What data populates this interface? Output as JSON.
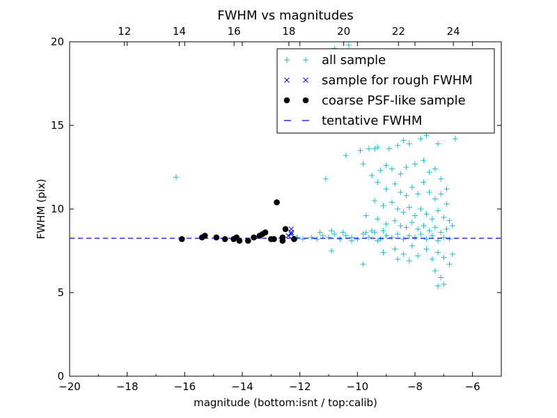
{
  "chart_data": {
    "type": "scatter",
    "title": "FWHM vs magnitudes",
    "xlabel": "magnitude (bottom:isnt / top:calib)",
    "ylabel": "FWHM (pix)",
    "xlim": [
      -20,
      -5
    ],
    "ylim": [
      0,
      20
    ],
    "top_xlim": [
      10,
      25.75
    ],
    "x_ticks": [
      -20,
      -18,
      -16,
      -14,
      -12,
      -10,
      -8,
      -6
    ],
    "x_tick_labels": [
      "−20",
      "−18",
      "−16",
      "−14",
      "−12",
      "−10",
      "−8",
      "−6"
    ],
    "y_ticks": [
      0,
      5,
      10,
      15,
      20
    ],
    "y_tick_labels": [
      "0",
      "5",
      "10",
      "15",
      "20"
    ],
    "top_ticks": [
      12,
      14,
      16,
      18,
      20,
      22,
      24
    ],
    "top_tick_labels": [
      "12",
      "14",
      "16",
      "18",
      "20",
      "22",
      "24"
    ],
    "grid": false,
    "legend_position": "top-right",
    "series": [
      {
        "name": "all sample",
        "marker": "plus",
        "color": "#17becf",
        "points": [
          [
            -16.3,
            11.9
          ],
          [
            -11.1,
            11.8
          ],
          [
            -10.4,
            13.2
          ],
          [
            -10.3,
            19.8
          ],
          [
            -10.8,
            19.6
          ],
          [
            -9.9,
            13.5
          ],
          [
            -9.8,
            12.7
          ],
          [
            -9.8,
            6.7
          ],
          [
            -9.6,
            13.6
          ],
          [
            -9.4,
            13.6
          ],
          [
            -9.3,
            13.7
          ],
          [
            -8.9,
            13.6
          ],
          [
            -8.6,
            13.8
          ],
          [
            -8.4,
            14.1
          ],
          [
            -8.2,
            13.9
          ],
          [
            -7.8,
            14.2
          ],
          [
            -7.6,
            14.4
          ],
          [
            -7.4,
            14.8
          ],
          [
            -7.2,
            13.9
          ],
          [
            -6.6,
            14.2
          ],
          [
            -9.5,
            12.0
          ],
          [
            -9.2,
            12.3
          ],
          [
            -9.0,
            12.6
          ],
          [
            -8.8,
            12.4
          ],
          [
            -8.5,
            12.1
          ],
          [
            -8.3,
            12.5
          ],
          [
            -8.0,
            12.7
          ],
          [
            -7.7,
            12.9
          ],
          [
            -7.5,
            12.2
          ],
          [
            -7.3,
            12.4
          ],
          [
            -7.1,
            11.8
          ],
          [
            -6.9,
            11.2
          ],
          [
            -9.3,
            11.6
          ],
          [
            -9.0,
            11.2
          ],
          [
            -8.7,
            11.5
          ],
          [
            -8.5,
            11.0
          ],
          [
            -8.3,
            10.8
          ],
          [
            -8.1,
            11.3
          ],
          [
            -7.9,
            10.9
          ],
          [
            -7.7,
            11.6
          ],
          [
            -7.5,
            11.0
          ],
          [
            -7.3,
            10.6
          ],
          [
            -7.1,
            10.9
          ],
          [
            -6.9,
            10.3
          ],
          [
            -9.4,
            10.5
          ],
          [
            -9.1,
            10.2
          ],
          [
            -8.8,
            10.4
          ],
          [
            -8.6,
            10.0
          ],
          [
            -8.4,
            9.8
          ],
          [
            -8.2,
            10.1
          ],
          [
            -8.0,
            9.6
          ],
          [
            -7.8,
            10.0
          ],
          [
            -7.6,
            9.7
          ],
          [
            -7.4,
            9.4
          ],
          [
            -7.2,
            9.9
          ],
          [
            -7.0,
            9.5
          ],
          [
            -6.8,
            9.3
          ],
          [
            -9.7,
            9.6
          ],
          [
            -9.3,
            9.4
          ],
          [
            -9.0,
            9.1
          ],
          [
            -8.7,
            9.3
          ],
          [
            -8.5,
            9.0
          ],
          [
            -8.3,
            8.9
          ],
          [
            -8.1,
            9.2
          ],
          [
            -7.9,
            8.8
          ],
          [
            -7.7,
            9.0
          ],
          [
            -7.5,
            8.7
          ],
          [
            -7.3,
            8.9
          ],
          [
            -7.1,
            8.6
          ],
          [
            -6.9,
            8.8
          ],
          [
            -6.7,
            9.0
          ],
          [
            -12.1,
            8.3
          ],
          [
            -11.9,
            8.2
          ],
          [
            -11.6,
            8.3
          ],
          [
            -11.4,
            8.2
          ],
          [
            -11.2,
            8.4
          ],
          [
            -11.0,
            8.3
          ],
          [
            -10.8,
            8.5
          ],
          [
            -10.6,
            8.2
          ],
          [
            -10.4,
            8.4
          ],
          [
            -10.2,
            8.3
          ],
          [
            -10.0,
            8.2
          ],
          [
            -9.8,
            8.5
          ],
          [
            -9.6,
            8.3
          ],
          [
            -9.4,
            8.6
          ],
          [
            -9.2,
            8.2
          ],
          [
            -9.0,
            8.4
          ],
          [
            -8.8,
            8.3
          ],
          [
            -8.6,
            8.5
          ],
          [
            -8.4,
            8.2
          ],
          [
            -8.2,
            8.4
          ],
          [
            -8.0,
            8.3
          ],
          [
            -7.8,
            8.5
          ],
          [
            -7.6,
            8.2
          ],
          [
            -7.4,
            8.4
          ],
          [
            -7.2,
            8.1
          ],
          [
            -7.0,
            8.3
          ],
          [
            -6.8,
            8.2
          ],
          [
            -10.9,
            7.5
          ],
          [
            -9.1,
            7.4
          ],
          [
            -8.7,
            7.6
          ],
          [
            -8.4,
            7.3
          ],
          [
            -8.1,
            7.8
          ],
          [
            -7.9,
            7.2
          ],
          [
            -7.6,
            7.6
          ],
          [
            -7.4,
            7.0
          ],
          [
            -7.2,
            7.4
          ],
          [
            -7.0,
            7.1
          ],
          [
            -6.8,
            6.7
          ],
          [
            -7.3,
            6.3
          ],
          [
            -7.1,
            5.9
          ],
          [
            -7.0,
            5.5
          ],
          [
            -7.2,
            5.4
          ],
          [
            -6.7,
            7.3
          ],
          [
            -8.6,
            7.0
          ],
          [
            -8.2,
            6.9
          ],
          [
            -10.2,
            8.1
          ],
          [
            -9.3,
            8.1
          ],
          [
            -9.7,
            8.6
          ],
          [
            -11.3,
            8.6
          ],
          [
            -10.9,
            8.7
          ],
          [
            -10.5,
            8.6
          ],
          [
            -9.5,
            8.7
          ],
          [
            -9.1,
            8.7
          ]
        ]
      },
      {
        "name": "sample for rough FWHM",
        "marker": "x",
        "color": "#0000ff",
        "points": [
          [
            -12.3,
            8.8
          ],
          [
            -12.3,
            8.5
          ],
          [
            -12.4,
            8.4
          ],
          [
            -12.3,
            8.6
          ]
        ]
      },
      {
        "name": "coarse PSF-like sample",
        "marker": "circle",
        "color": "#000000",
        "points": [
          [
            -16.1,
            8.2
          ],
          [
            -15.4,
            8.3
          ],
          [
            -15.3,
            8.4
          ],
          [
            -14.9,
            8.3
          ],
          [
            -14.6,
            8.2
          ],
          [
            -14.3,
            8.2
          ],
          [
            -14.2,
            8.3
          ],
          [
            -14.1,
            8.1
          ],
          [
            -13.8,
            8.1
          ],
          [
            -13.6,
            8.3
          ],
          [
            -13.4,
            8.4
          ],
          [
            -13.3,
            8.5
          ],
          [
            -13.2,
            8.6
          ],
          [
            -13.0,
            8.2
          ],
          [
            -12.9,
            8.2
          ],
          [
            -12.8,
            10.4
          ],
          [
            -12.6,
            8.1
          ],
          [
            -12.6,
            8.3
          ],
          [
            -12.5,
            8.8
          ],
          [
            -12.2,
            8.2
          ]
        ]
      },
      {
        "name": "tentative FWHM",
        "marker": "dashed-line",
        "color": "#0000ff",
        "y": 8.25
      }
    ]
  }
}
